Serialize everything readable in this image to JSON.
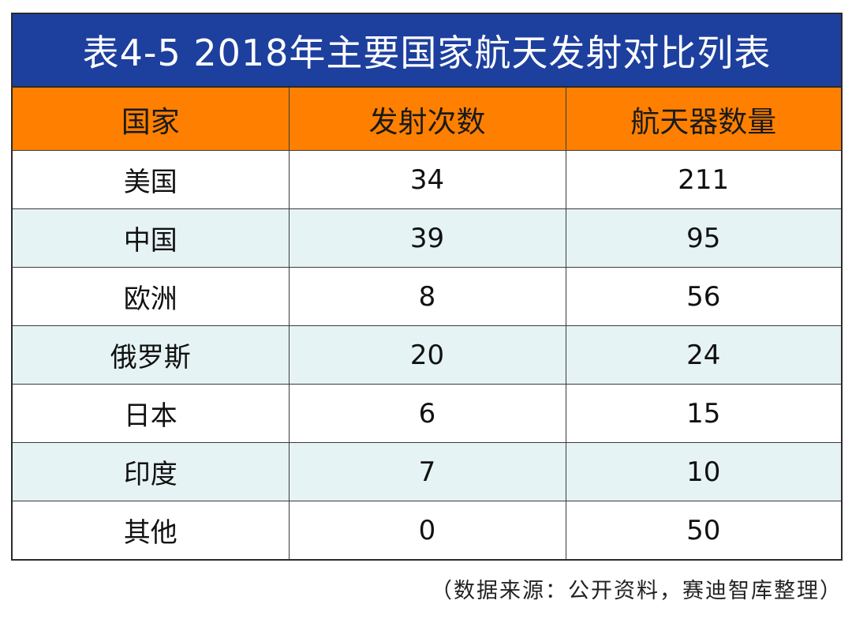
{
  "chart_data": {
    "type": "table",
    "title": "表4-5 2018年主要国家航天发射对比列表",
    "columns": [
      "国家",
      "发射次数",
      "航天器数量"
    ],
    "rows": [
      [
        "美国",
        "34",
        "211"
      ],
      [
        "中国",
        "39",
        "95"
      ],
      [
        "欧洲",
        "8",
        "56"
      ],
      [
        "俄罗斯",
        "20",
        "24"
      ],
      [
        "日本",
        "6",
        "15"
      ],
      [
        "印度",
        "7",
        "10"
      ],
      [
        "其他",
        "0",
        "50"
      ]
    ]
  },
  "source_note": "（数据来源：公开资料，赛迪智库整理）",
  "colors": {
    "title_background": "#1d3f9e",
    "header_background": "#ff8000",
    "stripe_background": "#e6f3f4"
  }
}
